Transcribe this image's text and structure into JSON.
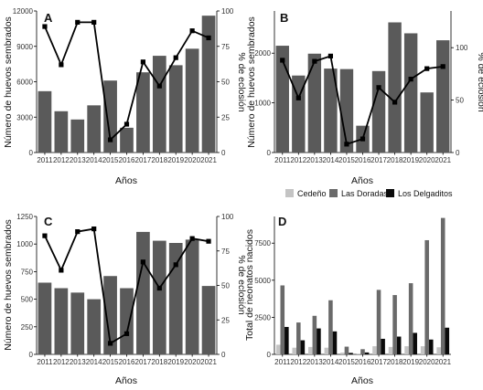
{
  "colors": {
    "bar_main": "#5a5a5a",
    "line": "#000000",
    "cedeno": "#c4c4c4",
    "las_doradas": "#6a6a6a",
    "los_delgaditos": "#0a0a0a",
    "panel_bg": "#ffffff",
    "axis": "#000000"
  },
  "chart_data": [
    {
      "panel_label": "A",
      "type": "bar+line",
      "categories": [
        "2011",
        "2012",
        "2013",
        "2014",
        "2015",
        "2016",
        "2017",
        "2018",
        "2019",
        "2020",
        "2021"
      ],
      "xlabel": "Años",
      "ylabel": "Número de huevos sembrados",
      "ylabel_right": "% de eclosión",
      "ylim": [
        0,
        12000
      ],
      "y_ticks": [
        0,
        3000,
        6000,
        9000,
        12000
      ],
      "ylim_right": [
        0,
        100
      ],
      "y_ticks_right": [
        0,
        25,
        50,
        75,
        100
      ],
      "series": [
        {
          "kind": "bar",
          "axis": "left",
          "values": [
            5200,
            3500,
            2800,
            4000,
            6100,
            2100,
            6800,
            8200,
            7400,
            8800,
            11600
          ]
        },
        {
          "kind": "line",
          "axis": "right",
          "values": [
            89,
            62,
            92,
            92,
            9,
            20,
            64,
            47,
            67,
            86,
            81
          ]
        }
      ]
    },
    {
      "panel_label": "B",
      "type": "bar+line",
      "categories": [
        "2011",
        "2012",
        "2013",
        "2014",
        "2015",
        "2016",
        "2017",
        "2018",
        "2019",
        "2020",
        "2021"
      ],
      "xlabel": "Años",
      "ylabel": "Número de huevos sembrados",
      "ylabel_right": "% de eclosión",
      "ylim": [
        0,
        2850
      ],
      "y_ticks": [
        0,
        1000,
        2000
      ],
      "ylim_right": [
        0,
        135
      ],
      "y_ticks_right": [
        0,
        50,
        100
      ],
      "series": [
        {
          "kind": "bar",
          "axis": "left",
          "values": [
            2150,
            1550,
            1990,
            1690,
            1680,
            540,
            1640,
            2620,
            2400,
            1210,
            2260
          ]
        },
        {
          "kind": "line",
          "axis": "right",
          "values": [
            88,
            52,
            87,
            92,
            8,
            13,
            62,
            48,
            70,
            80,
            82
          ]
        }
      ]
    },
    {
      "panel_label": "C",
      "type": "bar+line",
      "categories": [
        "2011",
        "2012",
        "2013",
        "2014",
        "2015",
        "2016",
        "2017",
        "2018",
        "2019",
        "2020",
        "2021"
      ],
      "xlabel": "Años",
      "ylabel": "Número de huevos sembrados",
      "ylabel_right": "% de eclosión",
      "ylim": [
        0,
        1250
      ],
      "y_ticks": [
        0,
        250,
        500,
        750,
        1000,
        1250
      ],
      "ylim_right": [
        0,
        100
      ],
      "y_ticks_right": [
        0,
        25,
        50,
        75,
        100
      ],
      "series": [
        {
          "kind": "bar",
          "axis": "left",
          "values": [
            650,
            600,
            560,
            500,
            710,
            600,
            1110,
            1030,
            1010,
            1040,
            620
          ]
        },
        {
          "kind": "line",
          "axis": "right",
          "values": [
            86,
            61,
            89,
            91,
            8,
            15,
            67,
            48,
            65,
            84,
            82
          ]
        }
      ]
    },
    {
      "panel_label": "D",
      "type": "grouped_bar",
      "categories": [
        "2011",
        "2012",
        "2013",
        "2014",
        "2015",
        "2016",
        "2017",
        "2018",
        "2019",
        "2020",
        "2021"
      ],
      "xlabel": "Años",
      "ylabel": "Total de neonatos nacidos",
      "ylim": [
        0,
        9300
      ],
      "y_ticks": [
        0,
        2500,
        5000,
        7500
      ],
      "legend_position": "top",
      "series": [
        {
          "name": "Cedeño",
          "color_key": "cedeno",
          "values": [
            650,
            450,
            500,
            450,
            120,
            50,
            550,
            500,
            550,
            550,
            480
          ]
        },
        {
          "name": "Las Doradas",
          "color_key": "las_doradas",
          "values": [
            4650,
            2150,
            2600,
            3650,
            520,
            350,
            4350,
            4000,
            4800,
            7700,
            9200
          ]
        },
        {
          "name": "Los Delgaditos",
          "color_key": "los_delgaditos",
          "values": [
            1850,
            950,
            1750,
            1550,
            100,
            130,
            1050,
            1200,
            1450,
            1000,
            1800
          ]
        }
      ]
    }
  ]
}
